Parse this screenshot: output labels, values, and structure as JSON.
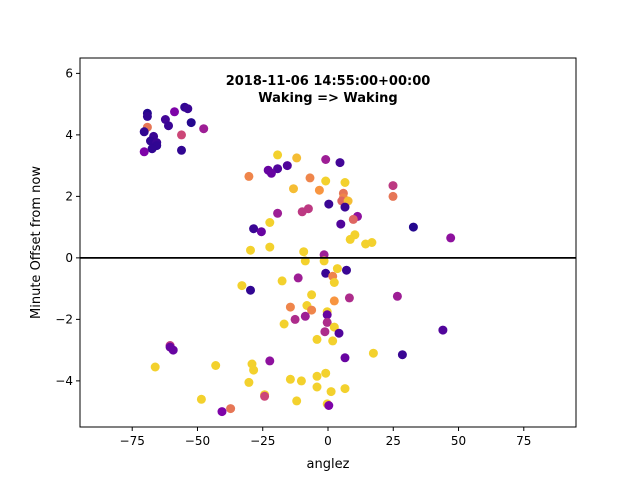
{
  "chart_data": {
    "type": "scatter",
    "title": "2018-11-06 14:55:00+00:00",
    "subtitle": "Waking => Waking",
    "xlabel": "anglez",
    "ylabel": "Minute Offset from now",
    "xlim": [
      -95,
      95
    ],
    "ylim": [
      -5.5,
      6.5
    ],
    "xticks": [
      -75,
      -50,
      -25,
      0,
      25,
      50,
      75
    ],
    "yticks": [
      -4,
      -2,
      0,
      2,
      4,
      6
    ],
    "xtick_labels": [
      "−75",
      "−50",
      "−25",
      "0",
      "25",
      "50",
      "75"
    ],
    "ytick_labels": [
      "−4",
      "−2",
      "0",
      "2",
      "4",
      "6"
    ],
    "grid": false,
    "hline": {
      "y": 0,
      "color": "#000000"
    },
    "colormap": "plasma",
    "points": [
      {
        "x": -69.2,
        "y": 4.7,
        "c": 0.05
      },
      {
        "x": -69.2,
        "y": 4.6,
        "c": 0.08
      },
      {
        "x": -62.3,
        "y": 4.5,
        "c": 0.12
      },
      {
        "x": -54.9,
        "y": 4.9,
        "c": 0.08
      },
      {
        "x": -53.7,
        "y": 4.85,
        "c": 0.1
      },
      {
        "x": -58.8,
        "y": 4.75,
        "c": 0.25
      },
      {
        "x": -52.4,
        "y": 4.4,
        "c": 0.05
      },
      {
        "x": -69.2,
        "y": 4.25,
        "c": 0.65
      },
      {
        "x": -61.1,
        "y": 4.3,
        "c": 0.1
      },
      {
        "x": -70.4,
        "y": 4.1,
        "c": 0.08
      },
      {
        "x": -56.1,
        "y": 4.0,
        "c": 0.5
      },
      {
        "x": -47.6,
        "y": 4.2,
        "c": 0.35
      },
      {
        "x": -66.8,
        "y": 3.95,
        "c": 0.1
      },
      {
        "x": -68.0,
        "y": 3.8,
        "c": 0.08
      },
      {
        "x": -65.6,
        "y": 3.75,
        "c": 0.1
      },
      {
        "x": -65.6,
        "y": 3.65,
        "c": 0.08
      },
      {
        "x": -67.4,
        "y": 3.55,
        "c": 0.08
      },
      {
        "x": -70.4,
        "y": 3.45,
        "c": 0.25
      },
      {
        "x": -56.1,
        "y": 3.5,
        "c": 0.08
      },
      {
        "x": -19.3,
        "y": 3.35,
        "c": 0.9
      },
      {
        "x": -12.0,
        "y": 3.25,
        "c": 0.85
      },
      {
        "x": -0.9,
        "y": 3.2,
        "c": 0.35
      },
      {
        "x": 4.6,
        "y": 3.1,
        "c": 0.12
      },
      {
        "x": -15.6,
        "y": 3.0,
        "c": 0.15
      },
      {
        "x": -19.3,
        "y": 2.9,
        "c": 0.15
      },
      {
        "x": -21.7,
        "y": 2.75,
        "c": 0.2
      },
      {
        "x": -22.9,
        "y": 2.85,
        "c": 0.2
      },
      {
        "x": -30.3,
        "y": 2.65,
        "c": 0.7
      },
      {
        "x": -6.9,
        "y": 2.6,
        "c": 0.7
      },
      {
        "x": -0.9,
        "y": 2.5,
        "c": 0.9
      },
      {
        "x": 6.5,
        "y": 2.45,
        "c": 0.9
      },
      {
        "x": 24.9,
        "y": 2.35,
        "c": 0.45
      },
      {
        "x": -13.2,
        "y": 2.25,
        "c": 0.85
      },
      {
        "x": -3.3,
        "y": 2.2,
        "c": 0.75
      },
      {
        "x": 5.9,
        "y": 2.1,
        "c": 0.65
      },
      {
        "x": 5.9,
        "y": 1.95,
        "c": 0.7
      },
      {
        "x": 24.9,
        "y": 2.0,
        "c": 0.65
      },
      {
        "x": 5.3,
        "y": 1.85,
        "c": 0.6
      },
      {
        "x": 7.7,
        "y": 1.85,
        "c": 0.85
      },
      {
        "x": 0.3,
        "y": 1.75,
        "c": 0.1
      },
      {
        "x": 6.5,
        "y": 1.65,
        "c": 0.1
      },
      {
        "x": -7.5,
        "y": 1.6,
        "c": 0.45
      },
      {
        "x": -9.9,
        "y": 1.5,
        "c": 0.45
      },
      {
        "x": -19.3,
        "y": 1.45,
        "c": 0.35
      },
      {
        "x": 11.3,
        "y": 1.35,
        "c": 0.3
      },
      {
        "x": 9.7,
        "y": 1.25,
        "c": 0.6
      },
      {
        "x": -22.3,
        "y": 1.15,
        "c": 0.9
      },
      {
        "x": 4.9,
        "y": 1.1,
        "c": 0.15
      },
      {
        "x": 32.7,
        "y": 1.0,
        "c": 0.05
      },
      {
        "x": -28.5,
        "y": 0.95,
        "c": 0.1
      },
      {
        "x": -25.5,
        "y": 0.85,
        "c": 0.2
      },
      {
        "x": 10.3,
        "y": 0.75,
        "c": 0.9
      },
      {
        "x": 47.0,
        "y": 0.65,
        "c": 0.3
      },
      {
        "x": 8.5,
        "y": 0.6,
        "c": 0.9
      },
      {
        "x": 16.8,
        "y": 0.5,
        "c": 0.9
      },
      {
        "x": 14.4,
        "y": 0.45,
        "c": 0.9
      },
      {
        "x": -22.3,
        "y": 0.35,
        "c": 0.9
      },
      {
        "x": -29.7,
        "y": 0.25,
        "c": 0.9
      },
      {
        "x": -9.3,
        "y": 0.2,
        "c": 0.9
      },
      {
        "x": -1.5,
        "y": 0.1,
        "c": 0.35
      },
      {
        "x": -8.7,
        "y": -0.1,
        "c": 0.9
      },
      {
        "x": -1.5,
        "y": -0.1,
        "c": 0.9
      },
      {
        "x": 3.6,
        "y": -0.35,
        "c": 0.9
      },
      {
        "x": 7.1,
        "y": -0.4,
        "c": 0.1
      },
      {
        "x": -0.9,
        "y": -0.5,
        "c": 0.1
      },
      {
        "x": 1.8,
        "y": -0.6,
        "c": 0.7
      },
      {
        "x": -11.4,
        "y": -0.65,
        "c": 0.35
      },
      {
        "x": -17.6,
        "y": -0.75,
        "c": 0.9
      },
      {
        "x": 2.4,
        "y": -0.8,
        "c": 0.9
      },
      {
        "x": -33.0,
        "y": -0.9,
        "c": 0.9
      },
      {
        "x": -29.7,
        "y": -1.05,
        "c": 0.08
      },
      {
        "x": -6.3,
        "y": -1.2,
        "c": 0.9
      },
      {
        "x": 26.6,
        "y": -1.25,
        "c": 0.35
      },
      {
        "x": 8.2,
        "y": -1.3,
        "c": 0.4
      },
      {
        "x": 2.4,
        "y": -1.4,
        "c": 0.75
      },
      {
        "x": -14.4,
        "y": -1.6,
        "c": 0.7
      },
      {
        "x": -8.1,
        "y": -1.55,
        "c": 0.9
      },
      {
        "x": -6.3,
        "y": -1.7,
        "c": 0.7
      },
      {
        "x": -0.3,
        "y": -1.75,
        "c": 0.9
      },
      {
        "x": -0.3,
        "y": -1.85,
        "c": 0.2
      },
      {
        "x": -8.7,
        "y": -1.9,
        "c": 0.35
      },
      {
        "x": -12.6,
        "y": -2.0,
        "c": 0.4
      },
      {
        "x": -0.3,
        "y": -2.1,
        "c": 0.4
      },
      {
        "x": -16.8,
        "y": -2.15,
        "c": 0.9
      },
      {
        "x": 2.4,
        "y": -2.25,
        "c": 0.9
      },
      {
        "x": 44.0,
        "y": -2.35,
        "c": 0.15
      },
      {
        "x": -1.2,
        "y": -2.4,
        "c": 0.4
      },
      {
        "x": 4.2,
        "y": -2.45,
        "c": 0.15
      },
      {
        "x": -4.2,
        "y": -2.65,
        "c": 0.9
      },
      {
        "x": 1.8,
        "y": -2.7,
        "c": 0.9
      },
      {
        "x": -60.5,
        "y": -2.85,
        "c": 0.45
      },
      {
        "x": -60.5,
        "y": -2.9,
        "c": 0.2
      },
      {
        "x": -59.3,
        "y": -3.0,
        "c": 0.2
      },
      {
        "x": 17.4,
        "y": -3.1,
        "c": 0.9
      },
      {
        "x": 28.5,
        "y": -3.15,
        "c": 0.1
      },
      {
        "x": 6.5,
        "y": -3.25,
        "c": 0.2
      },
      {
        "x": -22.3,
        "y": -3.35,
        "c": 0.3
      },
      {
        "x": -29.1,
        "y": -3.45,
        "c": 0.9
      },
      {
        "x": -43.0,
        "y": -3.5,
        "c": 0.9
      },
      {
        "x": -66.2,
        "y": -3.55,
        "c": 0.9
      },
      {
        "x": -28.5,
        "y": -3.65,
        "c": 0.9
      },
      {
        "x": -0.9,
        "y": -3.75,
        "c": 0.9
      },
      {
        "x": -4.2,
        "y": -3.85,
        "c": 0.9
      },
      {
        "x": -14.4,
        "y": -3.95,
        "c": 0.9
      },
      {
        "x": -10.2,
        "y": -4.0,
        "c": 0.9
      },
      {
        "x": -30.3,
        "y": -4.05,
        "c": 0.9
      },
      {
        "x": -4.2,
        "y": -4.2,
        "c": 0.9
      },
      {
        "x": 6.5,
        "y": -4.25,
        "c": 0.9
      },
      {
        "x": 1.2,
        "y": -4.35,
        "c": 0.9
      },
      {
        "x": -24.3,
        "y": -4.45,
        "c": 0.9
      },
      {
        "x": -24.3,
        "y": -4.5,
        "c": 0.5
      },
      {
        "x": -48.5,
        "y": -4.6,
        "c": 0.9
      },
      {
        "x": -12.0,
        "y": -4.65,
        "c": 0.9
      },
      {
        "x": -0.3,
        "y": -4.75,
        "c": 0.9
      },
      {
        "x": 0.3,
        "y": -4.8,
        "c": 0.25
      },
      {
        "x": -37.3,
        "y": -4.9,
        "c": 0.65
      },
      {
        "x": -40.6,
        "y": -5.0,
        "c": 0.25
      }
    ]
  }
}
